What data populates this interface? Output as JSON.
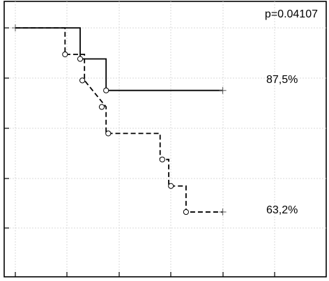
{
  "chart_data": {
    "type": "line",
    "title": "",
    "xlabel": "",
    "ylabel": "",
    "xlim": [
      0,
      12
    ],
    "ylim": [
      0.4,
      1.05
    ],
    "grid": true,
    "annotations": {
      "p_value": "p=0.04107",
      "end_label_solid": "87,5%",
      "end_label_dashed": "63,2%"
    },
    "series": [
      {
        "line_style": "solid",
        "color": "#000000",
        "steps": [
          [
            0,
            1.0
          ],
          [
            3.0,
            1.0
          ],
          [
            3.0,
            0.938
          ],
          [
            4.2,
            0.938
          ],
          [
            4.2,
            0.875
          ],
          [
            9.6,
            0.875
          ]
        ],
        "censored": [
          [
            0,
            1.0
          ],
          [
            9.6,
            0.875
          ]
        ],
        "events": [
          [
            3.0,
            0.938
          ],
          [
            4.2,
            0.875
          ]
        ]
      },
      {
        "line_style": "dashed",
        "color": "#000000",
        "steps": [
          [
            0,
            1.0
          ],
          [
            2.3,
            1.0
          ],
          [
            2.3,
            0.947
          ],
          [
            3.2,
            0.947
          ],
          [
            3.2,
            0.895
          ],
          [
            3.2,
            0.895
          ],
          [
            4.2,
            0.842
          ],
          [
            4.2,
            0.789
          ],
          [
            6.7,
            0.789
          ],
          [
            6.7,
            0.737
          ],
          [
            7.1,
            0.737
          ],
          [
            7.1,
            0.684
          ],
          [
            7.9,
            0.684
          ],
          [
            7.9,
            0.632
          ],
          [
            9.6,
            0.632
          ]
        ],
        "censored": [
          [
            9.6,
            0.632
          ]
        ],
        "events": [
          [
            2.3,
            0.947
          ],
          [
            3.1,
            0.895
          ],
          [
            4.0,
            0.842
          ],
          [
            4.3,
            0.789
          ],
          [
            6.8,
            0.737
          ],
          [
            7.2,
            0.684
          ],
          [
            7.9,
            0.632
          ]
        ]
      }
    ]
  }
}
